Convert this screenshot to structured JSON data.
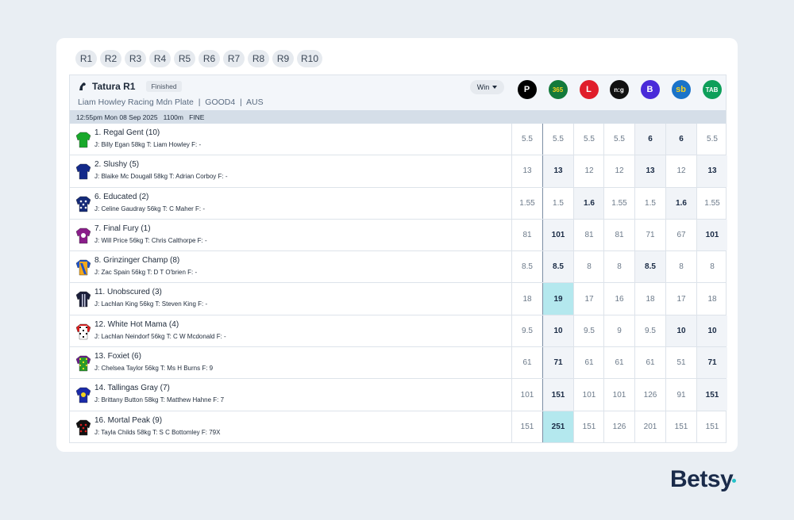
{
  "race_tabs": [
    "R1",
    "R2",
    "R3",
    "R4",
    "R5",
    "R6",
    "R7",
    "R8",
    "R9",
    "R10"
  ],
  "race": {
    "venue": "Tatura R1",
    "status": "Finished",
    "subtitle": "Liam Howley Racing Mdn Plate  |  GOOD4  |  AUS",
    "info": "12:55pm Mon 08 Sep 2025   1100m   FINE",
    "market": "Win"
  },
  "bookmakers": [
    {
      "name": "pointsbet-logo",
      "text": "P",
      "bg": "#000000",
      "fg": "#ffffff"
    },
    {
      "name": "bet365-logo",
      "text": "365",
      "bg": "#137a3b",
      "fg": "#f6d21c"
    },
    {
      "name": "ladbrokes-logo",
      "text": "L",
      "bg": "#e01e2b",
      "fg": "#ffffff"
    },
    {
      "name": "neds-logo",
      "text": "n:g",
      "bg": "#111111",
      "fg": "#ffffff"
    },
    {
      "name": "betr-logo",
      "text": "B",
      "bg": "#4a2bd9",
      "fg": "#ffffff"
    },
    {
      "name": "sportsbet-logo",
      "text": "sb",
      "bg": "#1a73c9",
      "fg": "#f6d21c"
    },
    {
      "name": "tab-logo",
      "text": "TAB",
      "bg": "#0e9f5a",
      "fg": "#ffffff"
    }
  ],
  "runners": [
    {
      "name": "1. Regal Gent (10)",
      "meta": "J: Billy Egan 58kg T: Liam Howley F: -",
      "silk": {
        "body": "#18a82a",
        "sleeve": "#18a82a",
        "pattern": "plain",
        "accent": "#ffffff"
      },
      "odds": [
        "5.5",
        "5.5",
        "5.5",
        "5.5",
        "6",
        "6",
        "5.5"
      ],
      "bold": [
        4,
        5
      ],
      "best": []
    },
    {
      "name": "2. Slushy (5)",
      "meta": "J: Blaike Mc Dougall 58kg T: Adrian Corboy F: -",
      "silk": {
        "body": "#142a8a",
        "sleeve": "#142a8a",
        "pattern": "plain",
        "accent": "#ffffff"
      },
      "odds": [
        "13",
        "13",
        "12",
        "12",
        "13",
        "12",
        "13"
      ],
      "bold": [
        1,
        4,
        6
      ],
      "best": []
    },
    {
      "name": "6. Educated (2)",
      "meta": "J: Celine Gaudray 56kg T: C Maher F: -",
      "silk": {
        "body": "#152a78",
        "sleeve": "#152a78",
        "pattern": "dots",
        "accent": "#ffffff"
      },
      "odds": [
        "1.55",
        "1.5",
        "1.6",
        "1.55",
        "1.5",
        "1.6",
        "1.55"
      ],
      "bold": [
        2,
        5
      ],
      "best": []
    },
    {
      "name": "7. Final Fury (1)",
      "meta": "J: Will Price 56kg T: Chris Calthorpe F: -",
      "silk": {
        "body": "#8a1d8a",
        "sleeve": "#8a1d8a",
        "pattern": "cross",
        "accent": "#ffffff"
      },
      "odds": [
        "81",
        "101",
        "81",
        "81",
        "71",
        "67",
        "101"
      ],
      "bold": [
        1,
        6
      ],
      "best": []
    },
    {
      "name": "8. Grinzinger Champ (8)",
      "meta": "J: Zac Spain 56kg T: D T O'brien F: -",
      "silk": {
        "body": "#f2a81d",
        "sleeve": "#1e52c8",
        "pattern": "sash",
        "accent": "#1e52c8"
      },
      "odds": [
        "8.5",
        "8.5",
        "8",
        "8",
        "8.5",
        "8",
        "8"
      ],
      "bold": [
        1,
        4
      ],
      "best": []
    },
    {
      "name": "11. Unobscured (3)",
      "meta": "J: Lachlan King 56kg T: Steven King F: -",
      "silk": {
        "body": "#1b1f3a",
        "sleeve": "#1b1f3a",
        "pattern": "stripes",
        "accent": "#c8cbe0"
      },
      "odds": [
        "18",
        "19",
        "17",
        "16",
        "18",
        "17",
        "18"
      ],
      "bold": [
        1
      ],
      "best": [
        1
      ]
    },
    {
      "name": "12. White Hot Mama (4)",
      "meta": "J: Lachlan Neindorf 56kg T: C W Mcdonald F: -",
      "silk": {
        "body": "#ffffff",
        "sleeve": "#d81e1e",
        "pattern": "checks",
        "accent": "#111111"
      },
      "odds": [
        "9.5",
        "10",
        "9.5",
        "9",
        "9.5",
        "10",
        "10"
      ],
      "bold": [
        1,
        5,
        6
      ],
      "best": []
    },
    {
      "name": "13. Foxiet (6)",
      "meta": "J: Chelsea Taylor 56kg T: Ms H Burns F: 9",
      "silk": {
        "body": "#2a9a2a",
        "sleeve": "#6a1d8a",
        "pattern": "checks",
        "accent": "#e8e01e"
      },
      "odds": [
        "61",
        "71",
        "61",
        "61",
        "61",
        "51",
        "71"
      ],
      "bold": [
        1,
        6
      ],
      "best": []
    },
    {
      "name": "14. Tallingas Gray (7)",
      "meta": "J: Brittany Button 58kg T: Matthew Hahne F: 7",
      "silk": {
        "body": "#1a2aa8",
        "sleeve": "#1a2aa8",
        "pattern": "cross",
        "accent": "#f2d21c"
      },
      "odds": [
        "101",
        "151",
        "101",
        "101",
        "126",
        "91",
        "151"
      ],
      "bold": [
        1,
        6
      ],
      "best": []
    },
    {
      "name": "16. Mortal Peak (9)",
      "meta": "J: Tayla Childs 58kg T: S C Bottomley F: 79X",
      "silk": {
        "body": "#111111",
        "sleeve": "#111111",
        "pattern": "dots",
        "accent": "#d81e1e"
      },
      "odds": [
        "151",
        "251",
        "151",
        "126",
        "201",
        "151",
        "151"
      ],
      "bold": [
        1
      ],
      "best": [
        1
      ]
    }
  ],
  "brand": "Betsy"
}
